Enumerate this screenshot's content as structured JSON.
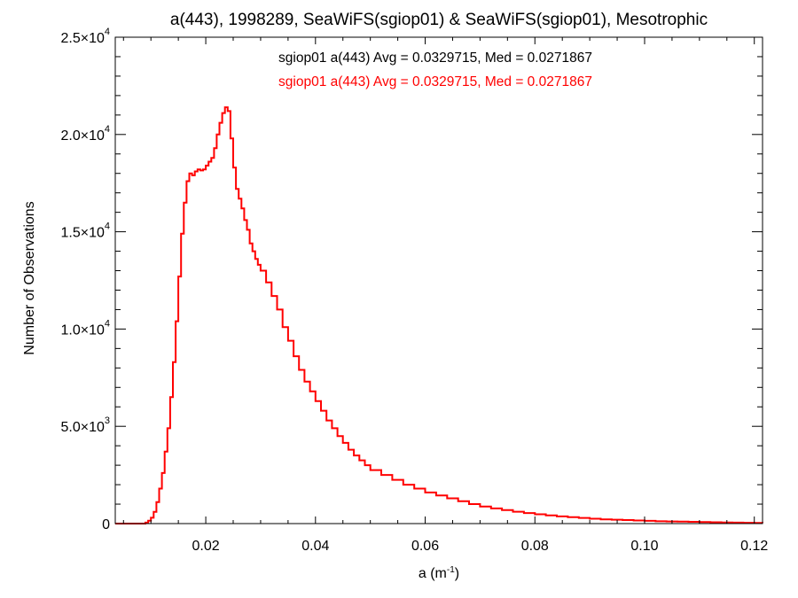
{
  "chart_data": {
    "type": "line",
    "title": "a(443), 1998289, SeaWiFS(sgiop01) & SeaWiFS(sgiop01), Mesotrophic",
    "xlabel": "a (m",
    "xlabel_sup": "-1",
    "xlabel_close": ")",
    "ylabel": "Number of Observations",
    "xlim": [
      0.0035,
      0.1215
    ],
    "ylim": [
      0,
      25000
    ],
    "grid": false,
    "legend_position": "top-center",
    "x_ticks": [
      {
        "value": 0.02,
        "label": "0.02"
      },
      {
        "value": 0.04,
        "label": "0.04"
      },
      {
        "value": 0.06,
        "label": "0.06"
      },
      {
        "value": 0.08,
        "label": "0.08"
      },
      {
        "value": 0.1,
        "label": "0.10"
      },
      {
        "value": 0.12,
        "label": "0.12"
      }
    ],
    "y_ticks": [
      {
        "value": 0,
        "mant": "0",
        "exp": ""
      },
      {
        "value": 5000,
        "mant": "5.0×10",
        "exp": "3"
      },
      {
        "value": 10000,
        "mant": "1.0×10",
        "exp": "4"
      },
      {
        "value": 15000,
        "mant": "1.5×10",
        "exp": "4"
      },
      {
        "value": 20000,
        "mant": "2.0×10",
        "exp": "4"
      },
      {
        "value": 25000,
        "mant": "2.5×10",
        "exp": "4"
      }
    ],
    "annotations": [
      {
        "text": "sgiop01 a(443) Avg = 0.0329715, Med = 0.0271867",
        "color": "#000000"
      },
      {
        "text": "sgiop01 a(443) Avg = 0.0329715, Med = 0.0271867",
        "color": "#ff0000"
      }
    ],
    "series": [
      {
        "color": "#ff0000",
        "step": true,
        "x": [
          0.0035,
          0.008,
          0.009,
          0.0095,
          0.01,
          0.0105,
          0.011,
          0.0115,
          0.012,
          0.0125,
          0.013,
          0.0135,
          0.014,
          0.0145,
          0.015,
          0.0155,
          0.016,
          0.0165,
          0.017,
          0.0175,
          0.018,
          0.0185,
          0.019,
          0.0195,
          0.02,
          0.0205,
          0.021,
          0.0215,
          0.022,
          0.0225,
          0.023,
          0.0235,
          0.024,
          0.0245,
          0.025,
          0.0255,
          0.026,
          0.0265,
          0.027,
          0.0275,
          0.028,
          0.0285,
          0.029,
          0.0295,
          0.03,
          0.031,
          0.032,
          0.033,
          0.034,
          0.035,
          0.036,
          0.037,
          0.038,
          0.039,
          0.04,
          0.041,
          0.042,
          0.043,
          0.044,
          0.045,
          0.046,
          0.047,
          0.048,
          0.049,
          0.05,
          0.052,
          0.054,
          0.056,
          0.058,
          0.06,
          0.062,
          0.064,
          0.066,
          0.068,
          0.07,
          0.072,
          0.074,
          0.076,
          0.078,
          0.08,
          0.082,
          0.084,
          0.086,
          0.088,
          0.09,
          0.092,
          0.094,
          0.096,
          0.098,
          0.1,
          0.102,
          0.104,
          0.106,
          0.108,
          0.11,
          0.112,
          0.114,
          0.116,
          0.118,
          0.12,
          0.1215
        ],
        "y": [
          0,
          0,
          50,
          150,
          300,
          600,
          1100,
          1800,
          2600,
          3700,
          4900,
          6500,
          8300,
          10400,
          12700,
          14900,
          16500,
          17600,
          18000,
          17900,
          18100,
          18200,
          18150,
          18200,
          18400,
          18600,
          18800,
          19300,
          20000,
          20600,
          21100,
          21400,
          21200,
          19800,
          18300,
          17200,
          16700,
          16200,
          15600,
          15100,
          14400,
          14000,
          13600,
          13300,
          13000,
          12400,
          11700,
          11000,
          10100,
          9400,
          8600,
          7900,
          7300,
          6800,
          6300,
          5800,
          5300,
          4900,
          4500,
          4150,
          3800,
          3500,
          3250,
          3000,
          2750,
          2500,
          2250,
          2000,
          1800,
          1600,
          1450,
          1300,
          1150,
          1000,
          880,
          780,
          690,
          610,
          540,
          480,
          420,
          370,
          330,
          290,
          250,
          220,
          200,
          180,
          160,
          140,
          120,
          110,
          100,
          90,
          80,
          70,
          60,
          50,
          40,
          35,
          30
        ]
      }
    ]
  }
}
